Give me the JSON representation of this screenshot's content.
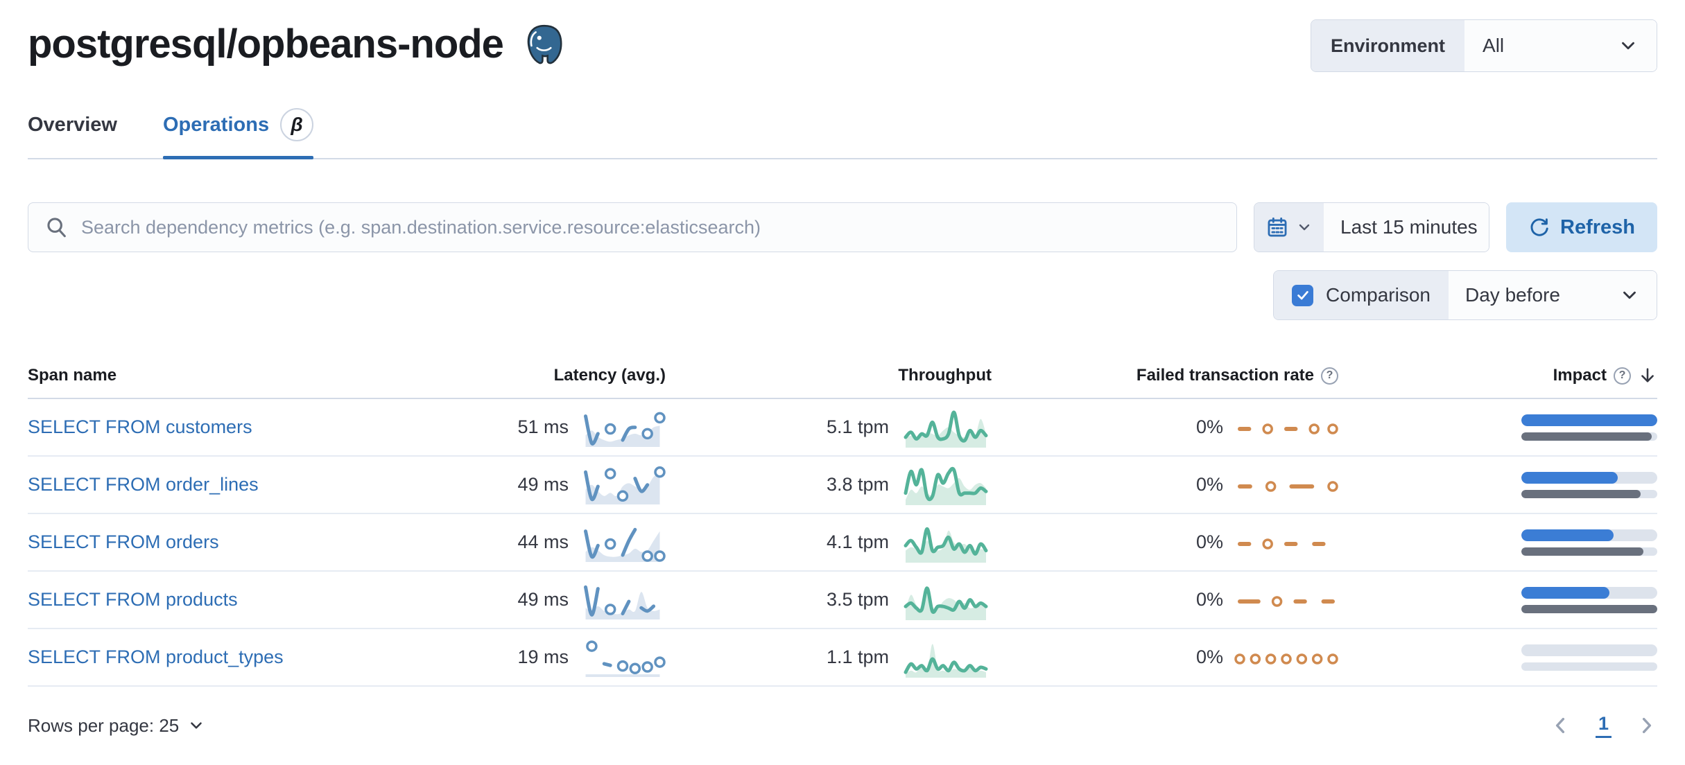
{
  "header": {
    "title": "postgresql/opbeans-node",
    "environment_label": "Environment",
    "environment_value": "All"
  },
  "tabs": [
    {
      "label": "Overview",
      "active": false
    },
    {
      "label": "Operations",
      "active": true,
      "beta": "β"
    }
  ],
  "controls": {
    "search_placeholder": "Search dependency metrics (e.g. span.destination.service.resource:elasticsearch)",
    "time_range": "Last 15 minutes",
    "refresh_label": "Refresh",
    "comparison_label": "Comparison",
    "comparison_value": "Day before",
    "comparison_checked": true
  },
  "table": {
    "columns": [
      "Span name",
      "Latency (avg.)",
      "Throughput",
      "Failed transaction rate",
      "Impact"
    ],
    "rows": [
      {
        "span_name": "SELECT FROM customers",
        "latency": "51 ms",
        "throughput": "5.1 tpm",
        "failed_rate": "0%",
        "impact_pct": 100,
        "impact_prev_pct": 96,
        "latency_spark": {
          "curr": [
            0.9,
            0.05,
            0.35,
            null,
            0.5,
            null,
            0.15,
            0.5,
            0.55,
            null,
            0.35,
            null,
            0.85
          ],
          "prev": [
            0.3,
            0.45,
            0.25,
            0.15,
            0.1,
            0.15,
            0.2,
            0.3,
            0.35,
            0.3,
            0.4,
            0.55,
            0.6
          ]
        },
        "throughput_spark": {
          "curr": [
            0.25,
            0.4,
            0.2,
            0.35,
            0.3,
            0.7,
            0.25,
            0.2,
            0.35,
            1.0,
            0.3,
            0.15,
            0.45,
            0.25,
            0.45,
            0.3
          ],
          "prev": [
            0.2,
            0.3,
            0.25,
            0.3,
            0.4,
            0.35,
            0.3,
            0.45,
            0.55,
            0.4,
            0.3,
            0.25,
            0.35,
            0.3,
            0.8,
            0.35
          ]
        },
        "failed_spark": {
          "curr": [
            0.5,
            0.5,
            null,
            0.5,
            null,
            0.5,
            0.5,
            null,
            0.5,
            null,
            0.5
          ]
        }
      },
      {
        "span_name": "SELECT FROM order_lines",
        "latency": "49 ms",
        "throughput": "3.8 tpm",
        "failed_rate": "0%",
        "impact_pct": 71,
        "impact_prev_pct": 88,
        "latency_spark": {
          "curr": [
            0.95,
            0.1,
            0.5,
            null,
            0.9,
            null,
            0.2,
            null,
            0.75,
            0.35,
            0.55,
            null,
            0.95
          ],
          "prev": [
            0.4,
            0.55,
            0.35,
            0.2,
            0.3,
            0.2,
            0.5,
            0.6,
            0.5,
            0.4,
            0.5,
            0.8,
            0.9
          ]
        },
        "throughput_spark": {
          "curr": [
            0.3,
            0.95,
            0.55,
            1.0,
            0.2,
            0.2,
            0.85,
            0.6,
            0.9,
            1.0,
            0.3,
            0.3,
            0.3,
            0.3,
            0.45,
            0.35
          ],
          "prev": [
            0.1,
            0.4,
            0.3,
            0.5,
            0.3,
            0.25,
            0.55,
            0.5,
            0.45,
            0.6,
            0.75,
            0.5,
            0.4,
            0.55,
            0.6,
            0.45
          ]
        },
        "failed_spark": {
          "curr": [
            0.5,
            0.5,
            null,
            0.5,
            null,
            0.5,
            0.5,
            0.5,
            null,
            0.5
          ]
        }
      },
      {
        "span_name": "SELECT FROM orders",
        "latency": "44 ms",
        "throughput": "4.1 tpm",
        "failed_rate": "0%",
        "impact_pct": 68,
        "impact_prev_pct": 90,
        "latency_spark": {
          "curr": [
            0.9,
            0.1,
            0.45,
            null,
            0.5,
            null,
            0.15,
            0.6,
            0.95,
            null,
            0.12,
            null,
            0.12
          ],
          "prev": [
            0.25,
            0.4,
            0.3,
            0.15,
            0.1,
            0.1,
            0.15,
            0.2,
            0.35,
            0.25,
            0.3,
            0.6,
            0.9
          ]
        },
        "throughput_spark": {
          "curr": [
            0.45,
            0.6,
            0.4,
            0.25,
            0.95,
            0.3,
            0.4,
            0.45,
            0.7,
            0.35,
            0.5,
            0.25,
            0.45,
            0.2,
            0.5,
            0.3
          ],
          "prev": [
            0.3,
            0.4,
            0.35,
            0.3,
            0.6,
            0.35,
            0.3,
            0.4,
            0.9,
            0.55,
            0.45,
            0.5,
            0.35,
            0.3,
            0.35,
            0.3
          ]
        },
        "failed_spark": {
          "curr": [
            0.5,
            0.5,
            null,
            0.5,
            null,
            0.5,
            0.5,
            null,
            0.5,
            0.5,
            null
          ]
        }
      },
      {
        "span_name": "SELECT FROM products",
        "latency": "49 ms",
        "throughput": "3.5 tpm",
        "failed_rate": "0%",
        "impact_pct": 65,
        "impact_prev_pct": 100,
        "latency_spark": {
          "curr": [
            0.95,
            0.08,
            0.9,
            null,
            0.25,
            null,
            0.12,
            0.5,
            null,
            0.3,
            0.2,
            0.35,
            null
          ],
          "prev": [
            0.3,
            0.2,
            0.35,
            0.2,
            0.15,
            0.1,
            0.15,
            0.25,
            0.2,
            0.8,
            0.3,
            0.2,
            0.25
          ]
        },
        "throughput_spark": {
          "curr": [
            0.35,
            0.45,
            0.3,
            0.25,
            0.9,
            0.2,
            0.35,
            0.35,
            0.3,
            0.25,
            0.5,
            0.3,
            0.55,
            0.35,
            0.45,
            0.35
          ],
          "prev": [
            0.25,
            0.7,
            0.4,
            0.3,
            0.8,
            0.35,
            0.3,
            0.5,
            0.6,
            0.55,
            0.4,
            0.45,
            0.3,
            0.35,
            0.45,
            0.3
          ]
        },
        "failed_spark": {
          "curr": [
            0.5,
            0.5,
            0.5,
            null,
            0.5,
            null,
            0.5,
            0.5,
            null,
            0.5,
            0.5
          ]
        }
      },
      {
        "span_name": "SELECT FROM product_types",
        "latency": "19 ms",
        "throughput": "1.1 tpm",
        "failed_rate": "0%",
        "impact_pct": 0,
        "impact_prev_pct": 0,
        "latency_spark": {
          "curr": [
            null,
            0.9,
            null,
            0.35,
            0.3,
            null,
            0.28,
            null,
            0.2,
            null,
            0.25,
            null,
            0.4
          ],
          "prev": [
            0.02,
            0.02,
            0.02,
            0.02,
            0.02,
            0.02,
            0.02,
            0.02,
            0.02,
            0.02,
            0.02,
            0.02,
            0.02
          ]
        },
        "throughput_spark": {
          "curr": [
            0.1,
            0.35,
            0.2,
            0.3,
            0.15,
            0.5,
            0.2,
            0.3,
            0.15,
            0.4,
            0.2,
            0.15,
            0.3,
            0.15,
            0.25,
            0.2
          ],
          "prev": [
            0.05,
            0.15,
            0.1,
            0.35,
            0.1,
            0.95,
            0.2,
            0.15,
            0.1,
            0.2,
            0.15,
            0.1,
            0.25,
            0.1,
            0.15,
            0.1
          ]
        },
        "failed_spark": {
          "curr": [
            0.5,
            null,
            0.5,
            null,
            0.5,
            null,
            0.5,
            null,
            0.5,
            null,
            0.5,
            null,
            0.5
          ]
        }
      }
    ]
  },
  "footer": {
    "rows_per_page": "Rows per page: 25",
    "page": "1"
  },
  "colors": {
    "accent": "#2d6db4",
    "impact_blue": "#3b7dd5",
    "impact_prev": "#69707d",
    "spark_blue": "#6092c0",
    "spark_blue_fill": "#dce5f0",
    "green": "#54b399",
    "green_fill": "#d6ece3",
    "orange": "#d08a4f"
  }
}
